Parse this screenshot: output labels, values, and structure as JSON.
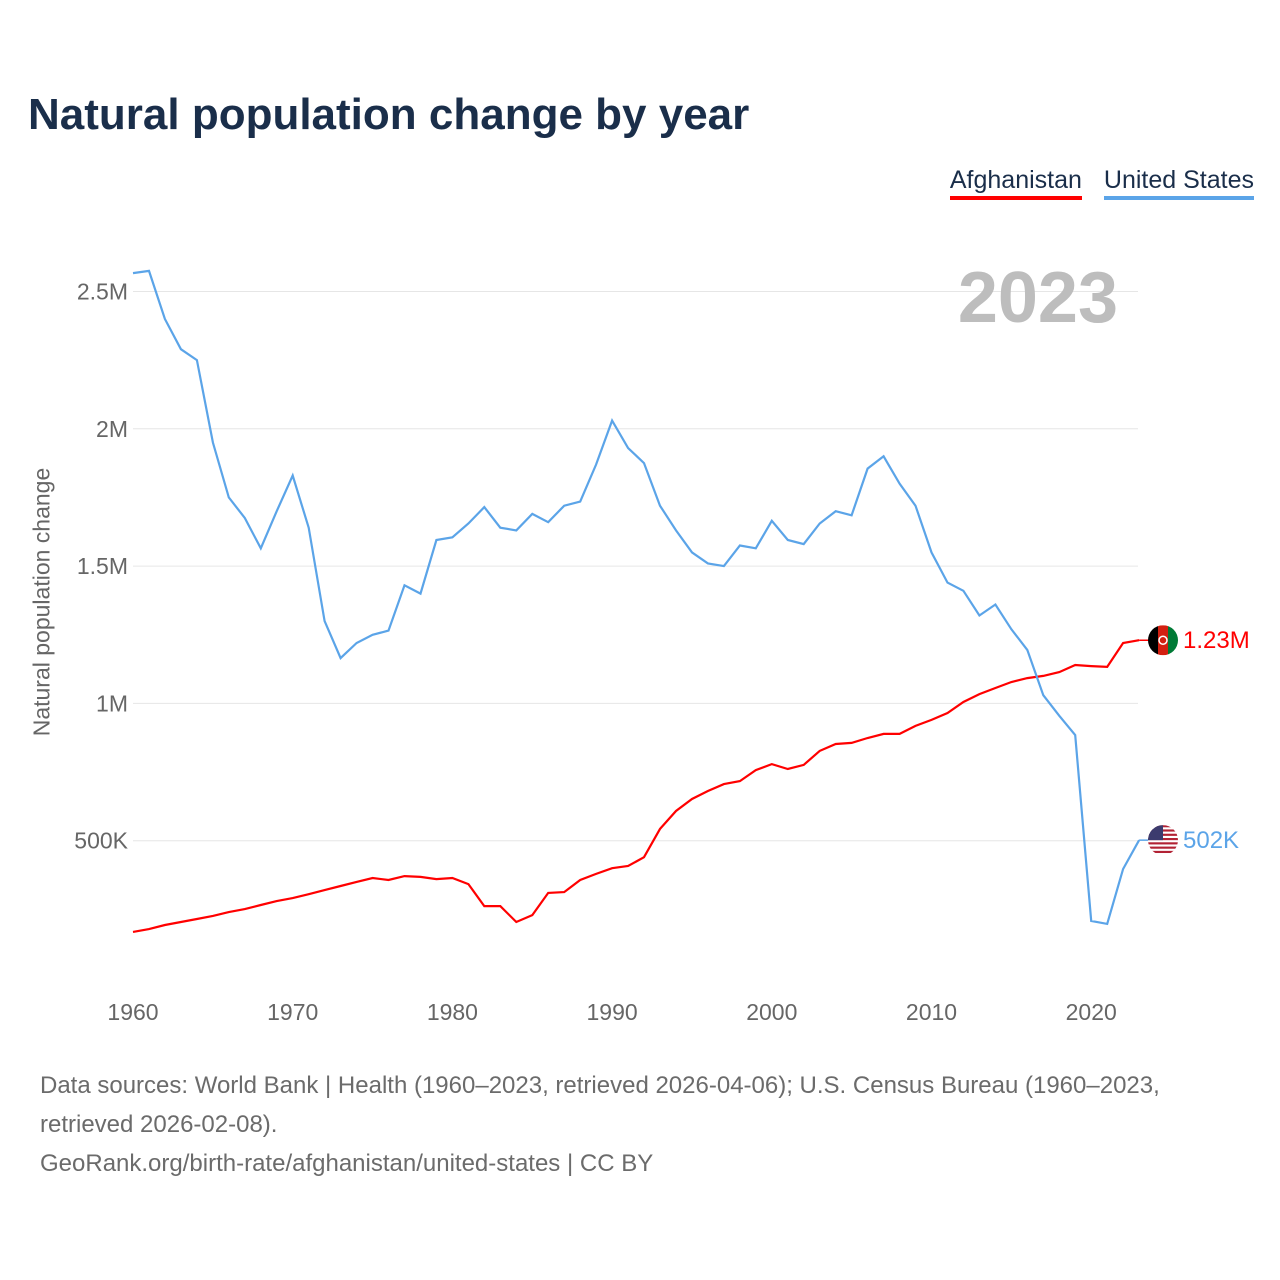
{
  "title": "Natural population change by year",
  "legend": [
    {
      "label": "Afghanistan",
      "color": "#ff0000"
    },
    {
      "label": "United States",
      "color": "#5ba4e8"
    }
  ],
  "footer": {
    "line1": "Data sources: World Bank | Health (1960–2023, retrieved 2026-04-06); U.S. Census Bureau (1960–2023, retrieved 2026-02-08).",
    "line2": "GeoRank.org/birth-rate/afghanistan/united-states | CC BY"
  },
  "chart_data": {
    "type": "line",
    "ylabel": "Natural population change",
    "year_label": "2023",
    "ylim": [
      0,
      3000000
    ],
    "xlim": [
      1960,
      2023
    ],
    "yticks": [
      {
        "v": 500000,
        "l": "500K"
      },
      {
        "v": 1000000,
        "l": "1M"
      },
      {
        "v": 1500000,
        "l": "1.5M"
      },
      {
        "v": 2000000,
        "l": "2M"
      },
      {
        "v": 2500000,
        "l": "2.5M"
      }
    ],
    "xticks": [
      1960,
      1970,
      1980,
      1990,
      2000,
      2010,
      2020
    ],
    "start_year": 1960,
    "series": [
      {
        "name": "Afghanistan",
        "color": "#ff0000",
        "end_label": "1.23M",
        "flag": "afghanistan-flag",
        "values": [
          0.168,
          0.178,
          0.193,
          0.204,
          0.215,
          0.226,
          0.24,
          0.251,
          0.266,
          0.28,
          0.291,
          0.305,
          0.32,
          0.335,
          0.35,
          0.364,
          0.357,
          0.371,
          0.368,
          0.36,
          0.364,
          0.342,
          0.262,
          0.262,
          0.204,
          0.229,
          0.31,
          0.313,
          0.357,
          0.379,
          0.4,
          0.408,
          0.44,
          0.543,
          0.608,
          0.652,
          0.681,
          0.706,
          0.717,
          0.757,
          0.779,
          0.761,
          0.776,
          0.827,
          0.852,
          0.856,
          0.874,
          0.889,
          0.889,
          0.918,
          0.94,
          0.965,
          1.005,
          1.034,
          1.056,
          1.078,
          1.092,
          1.1,
          1.114,
          1.14,
          1.136,
          1.133,
          1.22,
          1.23
        ]
      },
      {
        "name": "United States",
        "color": "#5ba4e8",
        "end_label": "502K",
        "flag": "united-states-flag",
        "values": [
          2.567,
          2.575,
          2.4,
          2.29,
          2.25,
          1.95,
          1.75,
          1.675,
          1.565,
          1.7,
          1.83,
          1.64,
          1.3,
          1.165,
          1.22,
          1.25,
          1.265,
          1.43,
          1.4,
          1.595,
          1.605,
          1.655,
          1.715,
          1.64,
          1.63,
          1.69,
          1.66,
          1.72,
          1.735,
          1.87,
          2.03,
          1.93,
          1.875,
          1.72,
          1.63,
          1.55,
          1.51,
          1.5,
          1.575,
          1.565,
          1.665,
          1.595,
          1.58,
          1.655,
          1.7,
          1.685,
          1.855,
          1.9,
          1.8,
          1.72,
          1.55,
          1.44,
          1.41,
          1.32,
          1.36,
          1.27,
          1.195,
          1.03,
          0.955,
          0.885,
          0.208,
          0.197,
          0.397,
          0.502
        ]
      }
    ]
  }
}
